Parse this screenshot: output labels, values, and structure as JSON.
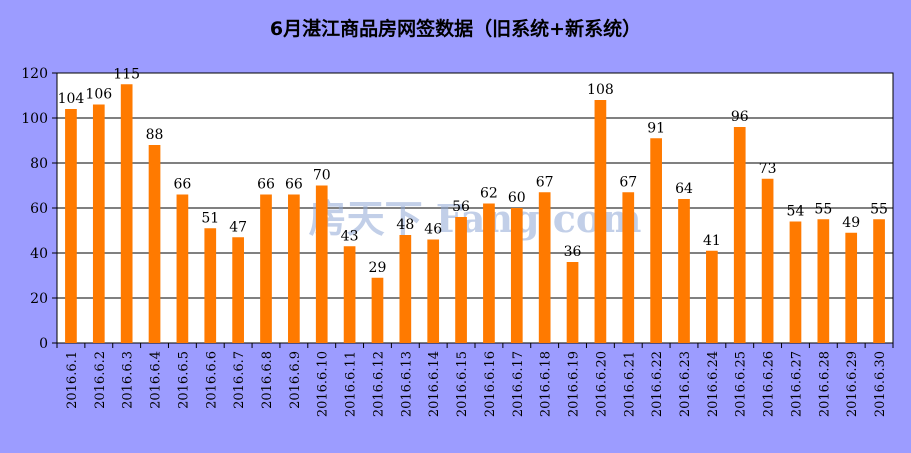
{
  "chart_data": {
    "type": "bar",
    "title": "6月湛江商品房网签数据（旧系统+新系统）",
    "categories": [
      "2016.6.1",
      "2016.6.2",
      "2016.6.3",
      "2016.6.4",
      "2016.6.5",
      "2016.6.6",
      "2016.6.7",
      "2016.6.8",
      "2016.6.9",
      "2016.6.10",
      "2016.6.11",
      "2016.6.12",
      "2016.6.13",
      "2016.6.14",
      "2016.6.15",
      "2016.6.16",
      "2016.6.17",
      "2016.6.18",
      "2016.6.19",
      "2016.6.20",
      "2016.6.21",
      "2016.6.22",
      "2016.6.23",
      "2016.6.24",
      "2016.6.25",
      "2016.6.26",
      "2016.6.27",
      "2016.6.28",
      "2016.6.29",
      "2016.6.30"
    ],
    "values": [
      104,
      106,
      115,
      88,
      66,
      51,
      47,
      66,
      66,
      70,
      43,
      29,
      48,
      46,
      56,
      62,
      60,
      67,
      36,
      108,
      67,
      91,
      64,
      41,
      96,
      73,
      54,
      55,
      49,
      55
    ],
    "ylim": [
      0,
      120
    ],
    "yticks": [
      0,
      20,
      40,
      60,
      80,
      100,
      120
    ],
    "grid": true,
    "bar_color": "#ff7a00",
    "plot_background": "#ffffff",
    "page_background": "#9c9cff",
    "watermark": "房天下 Fang.com"
  }
}
